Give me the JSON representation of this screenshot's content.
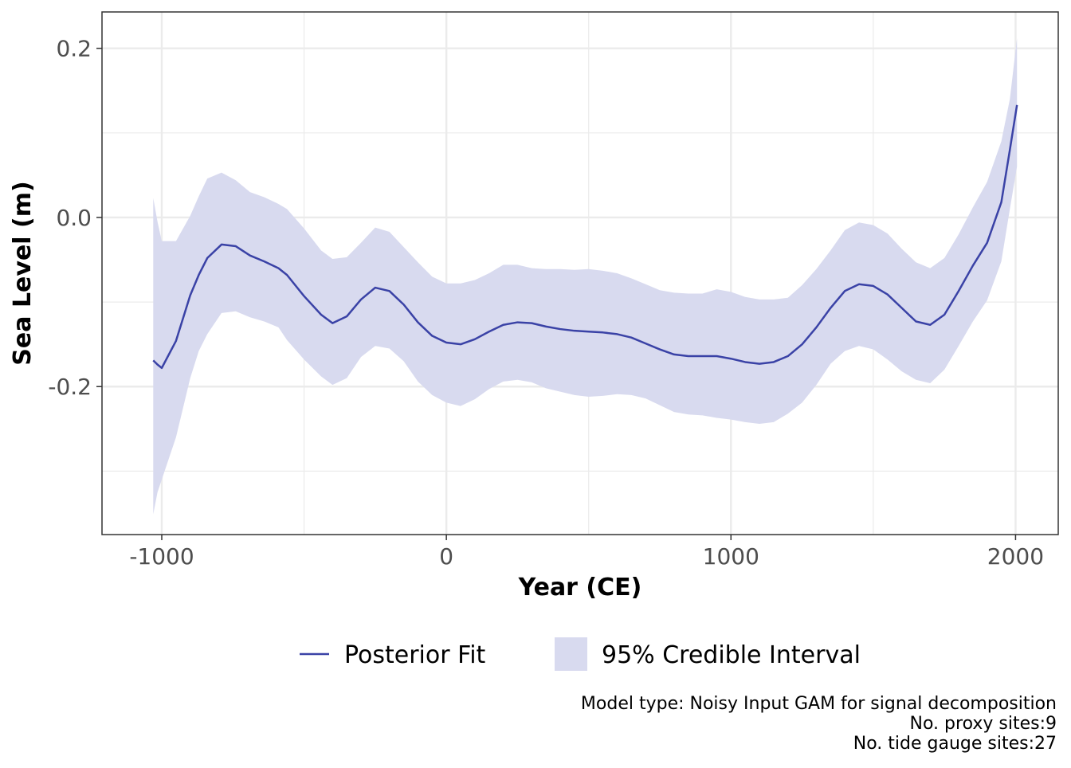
{
  "chart_data": {
    "type": "line",
    "title": "",
    "xlabel": "Year (CE)",
    "ylabel": "Sea Level (m)",
    "xlim": [
      -1210,
      2150
    ],
    "ylim": [
      -0.375,
      0.243
    ],
    "x_ticks": [
      -1000,
      0,
      1000,
      2000
    ],
    "x_tick_labels": [
      "-1000",
      "0",
      "1000",
      "2000"
    ],
    "y_ticks": [
      -0.2,
      0.0,
      0.2
    ],
    "y_tick_labels": [
      "-0.2",
      "0.0",
      "0.2"
    ],
    "grid": true,
    "legend_position": "bottom",
    "colors": {
      "line": "#3a42a6",
      "band": "#d8daef"
    },
    "series": [
      {
        "name": "Posterior Fit",
        "kind": "line",
        "x": [
          -1030,
          -1015,
          -1000,
          -950,
          -900,
          -870,
          -840,
          -790,
          -740,
          -690,
          -640,
          -590,
          -560,
          -500,
          -440,
          -400,
          -350,
          -300,
          -250,
          -200,
          -150,
          -100,
          -50,
          0,
          50,
          100,
          150,
          200,
          250,
          300,
          350,
          400,
          450,
          500,
          550,
          600,
          650,
          700,
          750,
          800,
          850,
          900,
          950,
          1000,
          1050,
          1100,
          1150,
          1200,
          1250,
          1300,
          1350,
          1400,
          1450,
          1500,
          1550,
          1600,
          1650,
          1700,
          1750,
          1800,
          1850,
          1900,
          1950,
          1980,
          2005
        ],
        "y": [
          -0.169,
          -0.174,
          -0.178,
          -0.146,
          -0.092,
          -0.068,
          -0.048,
          -0.032,
          -0.034,
          -0.045,
          -0.052,
          -0.06,
          -0.068,
          -0.093,
          -0.115,
          -0.125,
          -0.117,
          -0.097,
          -0.083,
          -0.087,
          -0.103,
          -0.124,
          -0.14,
          -0.148,
          -0.15,
          -0.144,
          -0.135,
          -0.127,
          -0.124,
          -0.125,
          -0.129,
          -0.132,
          -0.134,
          -0.135,
          -0.136,
          -0.138,
          -0.142,
          -0.149,
          -0.156,
          -0.162,
          -0.164,
          -0.164,
          -0.164,
          -0.167,
          -0.171,
          -0.173,
          -0.171,
          -0.164,
          -0.15,
          -0.13,
          -0.107,
          -0.087,
          -0.079,
          -0.081,
          -0.091,
          -0.107,
          -0.123,
          -0.127,
          -0.115,
          -0.087,
          -0.057,
          -0.03,
          0.018,
          0.08,
          0.133
        ]
      },
      {
        "name": "95% Credible Interval",
        "kind": "band",
        "x": [
          -1030,
          -1015,
          -1000,
          -950,
          -900,
          -870,
          -840,
          -790,
          -740,
          -690,
          -640,
          -590,
          -560,
          -500,
          -440,
          -400,
          -350,
          -300,
          -250,
          -200,
          -150,
          -100,
          -50,
          0,
          50,
          100,
          150,
          200,
          250,
          300,
          350,
          400,
          450,
          500,
          550,
          600,
          650,
          700,
          750,
          800,
          850,
          900,
          950,
          1000,
          1050,
          1100,
          1150,
          1200,
          1250,
          1300,
          1350,
          1400,
          1450,
          1500,
          1550,
          1600,
          1650,
          1700,
          1750,
          1800,
          1850,
          1900,
          1950,
          1980,
          2005
        ],
        "lower": [
          -0.351,
          -0.325,
          -0.31,
          -0.26,
          -0.19,
          -0.158,
          -0.138,
          -0.113,
          -0.111,
          -0.118,
          -0.123,
          -0.13,
          -0.145,
          -0.168,
          -0.188,
          -0.198,
          -0.19,
          -0.165,
          -0.152,
          -0.155,
          -0.17,
          -0.194,
          -0.21,
          -0.219,
          -0.223,
          -0.215,
          -0.203,
          -0.194,
          -0.192,
          -0.195,
          -0.202,
          -0.206,
          -0.21,
          -0.212,
          -0.211,
          -0.209,
          -0.21,
          -0.214,
          -0.222,
          -0.23,
          -0.233,
          -0.234,
          -0.237,
          -0.239,
          -0.242,
          -0.244,
          -0.242,
          -0.232,
          -0.219,
          -0.198,
          -0.173,
          -0.158,
          -0.152,
          -0.156,
          -0.168,
          -0.182,
          -0.192,
          -0.196,
          -0.18,
          -0.152,
          -0.123,
          -0.098,
          -0.052,
          0.01,
          0.06
        ],
        "upper": [
          0.023,
          -0.005,
          -0.028,
          -0.028,
          0.002,
          0.025,
          0.046,
          0.053,
          0.044,
          0.03,
          0.024,
          0.016,
          0.01,
          -0.013,
          -0.039,
          -0.049,
          -0.047,
          -0.03,
          -0.012,
          -0.017,
          -0.035,
          -0.053,
          -0.07,
          -0.078,
          -0.078,
          -0.074,
          -0.066,
          -0.056,
          -0.056,
          -0.06,
          -0.061,
          -0.061,
          -0.062,
          -0.061,
          -0.063,
          -0.066,
          -0.072,
          -0.079,
          -0.086,
          -0.089,
          -0.09,
          -0.09,
          -0.085,
          -0.088,
          -0.094,
          -0.097,
          -0.097,
          -0.095,
          -0.08,
          -0.061,
          -0.039,
          -0.015,
          -0.006,
          -0.009,
          -0.019,
          -0.037,
          -0.053,
          -0.06,
          -0.048,
          -0.02,
          0.012,
          0.042,
          0.09,
          0.14,
          0.212
        ]
      }
    ]
  },
  "legend": {
    "line_label": "Posterior Fit",
    "band_label": "95% Credible Interval"
  },
  "caption": {
    "line1": "Model type: Noisy Input GAM for signal decomposition",
    "line2": "No. proxy sites:9",
    "line3": "No. tide gauge sites:27"
  }
}
